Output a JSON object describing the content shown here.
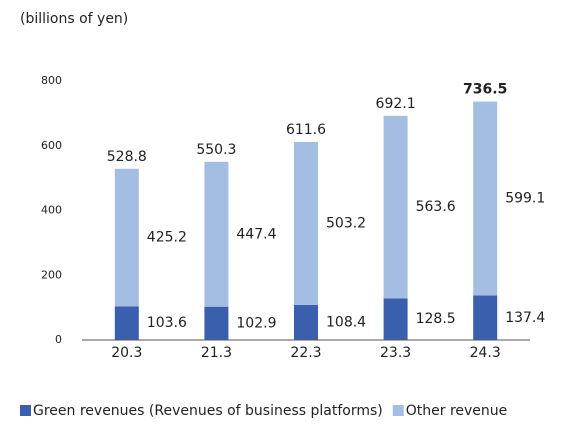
{
  "chart_data": {
    "type": "stacked_bar",
    "subtitle": "(billions of yen)",
    "categories": [
      "20.3",
      "21.3",
      "22.3",
      "23.3",
      "24.3"
    ],
    "series": [
      {
        "name": "Green revenues (Revenues of business platforms)",
        "color": "#3a5fad",
        "values": [
          103.6,
          102.9,
          108.4,
          128.5,
          137.4
        ]
      },
      {
        "name": "Other revenue",
        "color": "#a4bde3",
        "values": [
          425.2,
          447.4,
          503.2,
          563.6,
          599.1
        ]
      }
    ],
    "totals": [
      528.8,
      550.3,
      611.6,
      692.1,
      736.5
    ],
    "ylim": [
      0,
      800
    ],
    "yticks": [
      0,
      200,
      400,
      600,
      800
    ],
    "grid": false
  }
}
